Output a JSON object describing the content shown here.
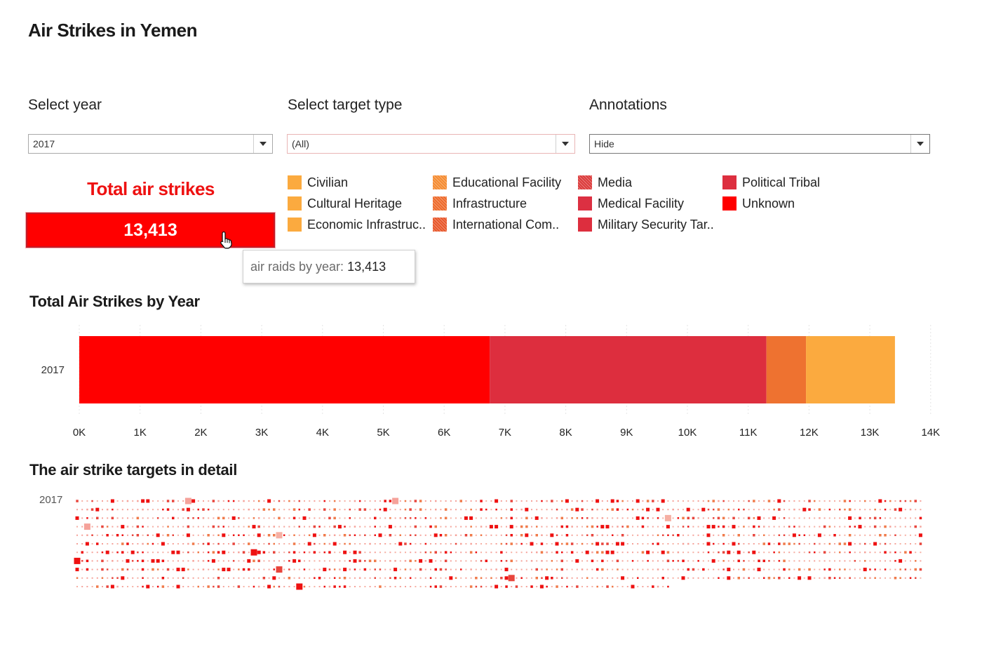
{
  "title": "Air Strikes in Yemen",
  "filters": {
    "year": {
      "label": "Select year",
      "value": "2017"
    },
    "target_type": {
      "label": "Select target type",
      "value": "(All)"
    },
    "annotations": {
      "label": "Annotations",
      "value": "Hide"
    }
  },
  "kpi": {
    "heading": "Total air strikes",
    "value": "13,413"
  },
  "tooltip": {
    "label": "air raids by year:",
    "value": "13,413"
  },
  "legend": [
    {
      "label": "Civilian",
      "color": "#fbaa3f",
      "pattern": "solid"
    },
    {
      "label": "Cultural Heritage",
      "color": "#fbaa3f",
      "pattern": "solid"
    },
    {
      "label": "Economic Infrastruc..",
      "color": "#fbaa3f",
      "pattern": "solid"
    },
    {
      "label": "Educational Facility",
      "color": "#f58c32",
      "pattern": "stripes"
    },
    {
      "label": "Infrastructure",
      "color": "#ee6b2c",
      "pattern": "stripes"
    },
    {
      "label": "International Com..",
      "color": "#e8582c",
      "pattern": "stripes"
    },
    {
      "label": "Media",
      "color": "#dc3c3c",
      "pattern": "stripes"
    },
    {
      "label": "Medical Facility",
      "color": "#dc3042",
      "pattern": "solid"
    },
    {
      "label": "Military Security Tar..",
      "color": "#dd2e3e",
      "pattern": "solid"
    },
    {
      "label": "Political Tribal",
      "color": "#dd2f3f",
      "pattern": "solid"
    },
    {
      "label": "Unknown",
      "color": "#ff0000",
      "pattern": "solid"
    }
  ],
  "bar_section_title": "Total Air Strikes by Year",
  "detail_section_title": "The air strike targets in detail",
  "detail_year_label": "2017",
  "chart_data": {
    "type": "bar",
    "orientation": "horizontal",
    "stacked": true,
    "title": "Total Air Strikes by Year",
    "categories": [
      "2017"
    ],
    "xlim": [
      0,
      14000
    ],
    "x_ticks": [
      0,
      1000,
      2000,
      3000,
      4000,
      5000,
      6000,
      7000,
      8000,
      9000,
      10000,
      11000,
      12000,
      13000,
      14000
    ],
    "x_tick_labels": [
      "0K",
      "1K",
      "2K",
      "3K",
      "4K",
      "5K",
      "6K",
      "7K",
      "8K",
      "9K",
      "10K",
      "11K",
      "12K",
      "13K",
      "14K"
    ],
    "total": 13413,
    "series": [
      {
        "name": "Unknown",
        "values": [
          6750
        ],
        "color": "#ff0000"
      },
      {
        "name": "Military Security Target",
        "values": [
          4550
        ],
        "color": "#dd2e3e"
      },
      {
        "name": "Infrastructure",
        "values": [
          650
        ],
        "color": "#ee7230"
      },
      {
        "name": "Civilian",
        "values": [
          1463
        ],
        "color": "#fbaa3f"
      }
    ],
    "grid": true
  }
}
